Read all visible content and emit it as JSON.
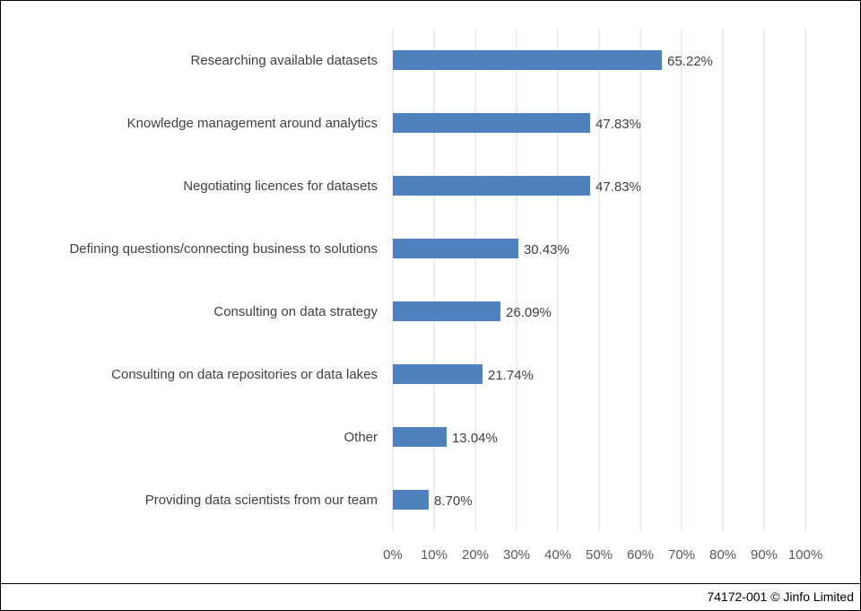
{
  "chart_data": {
    "type": "bar",
    "orientation": "horizontal",
    "categories": [
      "Researching available datasets",
      "Knowledge management around analytics",
      "Negotiating licences for datasets",
      "Defining questions/connecting business to solutions",
      "Consulting on data strategy",
      "Consulting on data repositories or data lakes",
      "Other",
      "Providing data scientists from our team"
    ],
    "values": [
      65.22,
      47.83,
      47.83,
      30.43,
      26.09,
      21.74,
      13.04,
      8.7
    ],
    "data_labels": [
      "65.22%",
      "47.83%",
      "47.83%",
      "30.43%",
      "26.09%",
      "21.74%",
      "13.04%",
      "8.70%"
    ],
    "x_ticks": [
      "0%",
      "10%",
      "20%",
      "30%",
      "40%",
      "50%",
      "60%",
      "70%",
      "80%",
      "90%",
      "100%"
    ],
    "xlim": [
      0,
      100
    ],
    "grid": true,
    "legend": "none",
    "bar_color": "#4f81bd",
    "grid_color": "#d9d9d9"
  },
  "footer": {
    "copyright": "74172-001 © Jinfo Limited"
  }
}
